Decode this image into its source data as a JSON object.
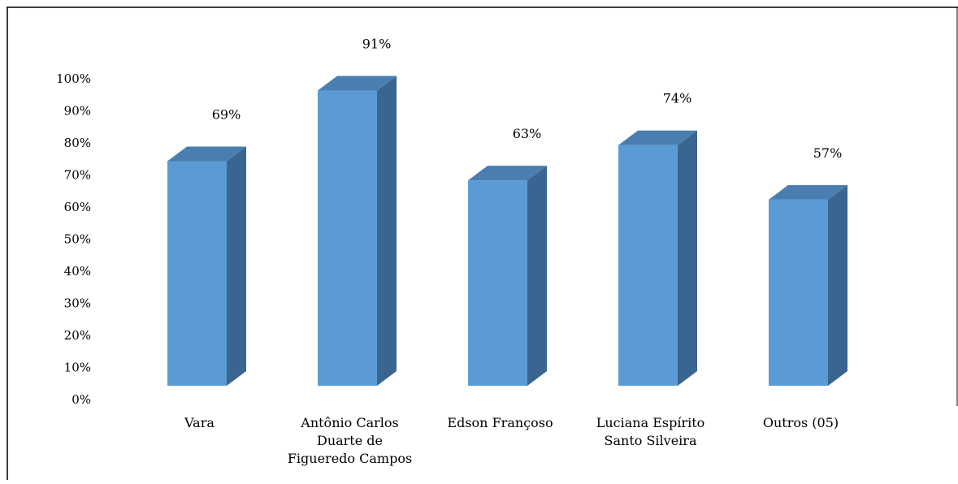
{
  "chart_data": {
    "type": "bar",
    "title": "",
    "xlabel": "",
    "ylabel": "",
    "ylim": [
      0,
      100
    ],
    "y_ticks": [
      "0%",
      "10%",
      "20%",
      "30%",
      "40%",
      "50%",
      "60%",
      "70%",
      "80%",
      "90%",
      "100%"
    ],
    "grid": false,
    "legend": "none",
    "three_d": true,
    "categories": [
      [
        "Vara"
      ],
      [
        "Antônio Carlos",
        "Duarte de",
        "Figueredo Campos"
      ],
      [
        "Edson Françoso"
      ],
      [
        "Luciana Espírito",
        "Santo Silveira"
      ],
      [
        "Outros (05)"
      ]
    ],
    "values": [
      69,
      91,
      63,
      74,
      57
    ],
    "data_labels": [
      "69%",
      "91%",
      "63%",
      "74%",
      "57%"
    ],
    "colors": {
      "front": "#5b9bd5",
      "top": "#4a7eb0",
      "side": "#3a6590",
      "axis": "#000000"
    }
  }
}
